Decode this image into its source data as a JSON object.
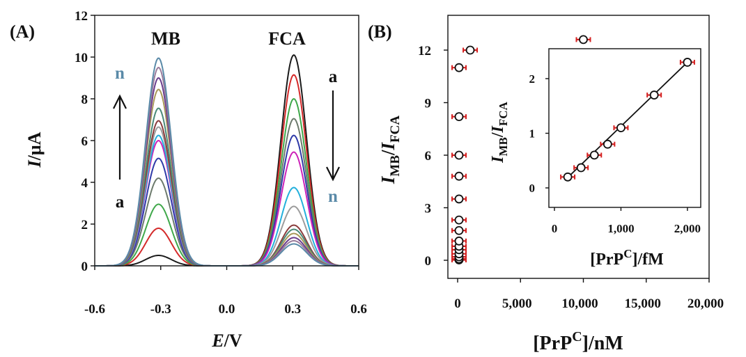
{
  "chart_data": [
    {
      "panel_label": "(A)",
      "type": "line",
      "xlabel": "E/V",
      "xlabel_parts": [
        "E",
        "/V"
      ],
      "ylabel": "I/μA",
      "ylabel_parts": [
        "I",
        "/μA"
      ],
      "xlim": [
        -0.6,
        0.6
      ],
      "ylim": [
        0,
        12
      ],
      "xticks": [
        -0.6,
        -0.3,
        0.0,
        0.3,
        0.6
      ],
      "xtick_labels": [
        "-0.6",
        "-0.3",
        "0.0",
        "0.3",
        "0.6"
      ],
      "yticks": [
        0,
        2,
        4,
        6,
        8,
        10,
        12
      ],
      "ytick_labels": [
        "0",
        "2",
        "4",
        "6",
        "8",
        "10",
        "12"
      ],
      "peak_labels": [
        "MB",
        "FCA"
      ],
      "mb_peak_potential": -0.31,
      "fca_peak_potential": 0.305,
      "arrow_left": {
        "start_label": "a",
        "end_label": "n",
        "direction": "up"
      },
      "arrow_right": {
        "start_label": "a",
        "end_label": "n",
        "direction": "down"
      },
      "series": [
        {
          "mb_peak": 0.5,
          "fca_peak": 10.1,
          "color": "#1a1a1a"
        },
        {
          "mb_peak": 1.8,
          "fca_peak": 9.15,
          "color": "#d42a2a"
        },
        {
          "mb_peak": 2.95,
          "fca_peak": 8.0,
          "color": "#3fa84a"
        },
        {
          "mb_peak": 4.2,
          "fca_peak": 7.05,
          "color": "#6c7a6c"
        },
        {
          "mb_peak": 5.15,
          "fca_peak": 6.25,
          "color": "#2f3aa8"
        },
        {
          "mb_peak": 6.0,
          "fca_peak": 5.45,
          "color": "#cc22b8"
        },
        {
          "mb_peak": 6.25,
          "fca_peak": 3.75,
          "color": "#23b0dc"
        },
        {
          "mb_peak": 6.65,
          "fca_peak": 2.85,
          "color": "#9c9c9c"
        },
        {
          "mb_peak": 6.95,
          "fca_peak": 1.95,
          "color": "#8a3c3c"
        },
        {
          "mb_peak": 7.55,
          "fca_peak": 1.75,
          "color": "#4a8a78"
        },
        {
          "mb_peak": 8.45,
          "fca_peak": 1.55,
          "color": "#a89858"
        },
        {
          "mb_peak": 9.0,
          "fca_peak": 1.35,
          "color": "#6a3c8c"
        },
        {
          "mb_peak": 9.5,
          "fca_peak": 1.2,
          "color": "#9a7c9c"
        },
        {
          "mb_peak": 9.95,
          "fca_peak": 1.05,
          "color": "#5a8aa8"
        }
      ]
    },
    {
      "panel_label": "(B)",
      "type": "scatter",
      "xlabel_parts": [
        "[PrP",
        "C",
        "]/nM"
      ],
      "ylabel_parts": [
        "I",
        "MB",
        "/",
        "I",
        "FCA"
      ],
      "xlim": [
        0,
        20000
      ],
      "ylim": [
        0,
        13
      ],
      "xticks": [
        0,
        5000,
        10000,
        15000,
        20000
      ],
      "xtick_labels": [
        "0",
        "5,000",
        "10,000",
        "15,000",
        "20,000"
      ],
      "yticks": [
        0,
        3,
        6,
        9,
        12
      ],
      "ytick_labels": [
        "0",
        "3",
        "6",
        "9",
        "12"
      ],
      "points": [
        {
          "x": 0.2,
          "y": 0.2
        },
        {
          "x": 0.4,
          "y": 0.37
        },
        {
          "x": 0.6,
          "y": 0.6
        },
        {
          "x": 0.8,
          "y": 0.8
        },
        {
          "x": 1.0,
          "y": 1.1
        },
        {
          "x": 1.5,
          "y": 1.7
        },
        {
          "x": 2.0,
          "y": 2.3
        },
        {
          "x": 5,
          "y": 3.5
        },
        {
          "x": 10,
          "y": 4.8
        },
        {
          "x": 20,
          "y": 6.0
        },
        {
          "x": 50,
          "y": 8.2
        },
        {
          "x": 100,
          "y": 11.0
        },
        {
          "x": 1000,
          "y": 12.0
        },
        {
          "x": 10000,
          "y": 12.6
        }
      ],
      "error": 0.12,
      "inset": {
        "xlabel_parts": [
          "[PrP",
          "C",
          "]/fM"
        ],
        "ylabel_parts": [
          "I",
          "MB",
          "/",
          "I",
          "FCA"
        ],
        "xlim": [
          0,
          2200
        ],
        "ylim": [
          0,
          2.5
        ],
        "xticks": [
          0,
          1000,
          2000
        ],
        "xtick_labels": [
          "0",
          "1,000",
          "2,000"
        ],
        "yticks": [
          0,
          1,
          2
        ],
        "ytick_labels": [
          "0",
          "1",
          "2"
        ],
        "points": [
          {
            "x": 200,
            "y": 0.2
          },
          {
            "x": 400,
            "y": 0.37
          },
          {
            "x": 600,
            "y": 0.6
          },
          {
            "x": 800,
            "y": 0.8
          },
          {
            "x": 1000,
            "y": 1.1
          },
          {
            "x": 1500,
            "y": 1.7
          },
          {
            "x": 2000,
            "y": 2.3
          }
        ],
        "fit": {
          "x": [
            200,
            2000
          ],
          "y": [
            0.19,
            2.3
          ]
        },
        "error": 0.05
      }
    }
  ],
  "colors": {
    "error_bar": "#d42020",
    "axis": "#111111",
    "arrow_n_label": "#5a8aa8"
  }
}
